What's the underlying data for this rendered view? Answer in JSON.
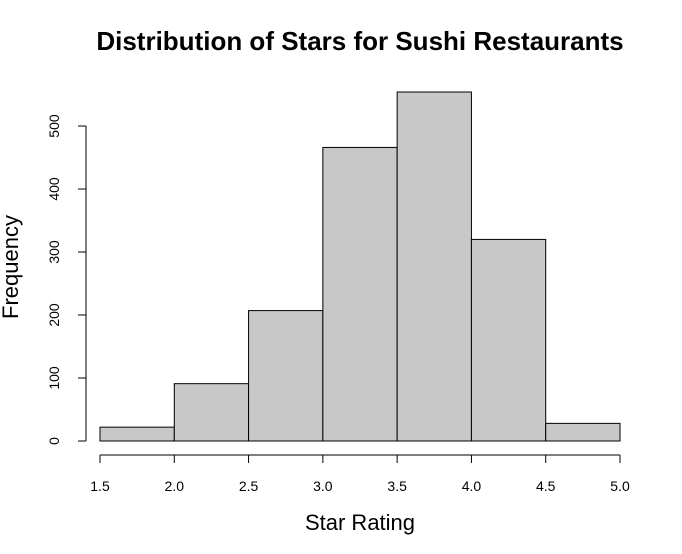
{
  "chart_data": {
    "type": "bar",
    "title": "Distribution of Stars for Sushi Restaurants",
    "xlabel": "Star Rating",
    "ylabel": "Frequency",
    "bins": [
      {
        "start": 1.5,
        "end": 2.0,
        "value": 22
      },
      {
        "start": 2.0,
        "end": 2.5,
        "value": 91
      },
      {
        "start": 2.5,
        "end": 3.0,
        "value": 207
      },
      {
        "start": 3.0,
        "end": 3.5,
        "value": 466
      },
      {
        "start": 3.5,
        "end": 4.0,
        "value": 554
      },
      {
        "start": 4.0,
        "end": 4.5,
        "value": 320
      },
      {
        "start": 4.5,
        "end": 5.0,
        "value": 28
      }
    ],
    "xlim": [
      1.5,
      5.0
    ],
    "ylim": [
      0,
      554
    ],
    "xticks": [
      "1.5",
      "2.0",
      "2.5",
      "3.0",
      "3.5",
      "4.0",
      "4.5",
      "5.0"
    ],
    "yticks": [
      "0",
      "100",
      "200",
      "300",
      "400",
      "500"
    ],
    "bar_color": "#c8c8c8",
    "grid": false,
    "legend": "none"
  }
}
